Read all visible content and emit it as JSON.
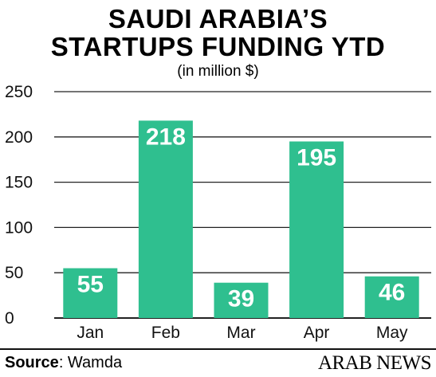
{
  "title_line1": "SAUDI ARABIA’S",
  "title_line2": "STARTUPS FUNDING YTD",
  "subtitle": "(in million $)",
  "source_label": "Source",
  "source_value": ": Wamda",
  "logo_text": "ARAB NEWS",
  "colors": {
    "bar": "#2fbf8f",
    "grid": "#222222",
    "text": "#111111"
  },
  "chart_data": {
    "type": "bar",
    "title": "SAUDI ARABIA’S STARTUPS FUNDING YTD",
    "subtitle": "(in million $)",
    "xlabel": "",
    "ylabel": "",
    "categories": [
      "Jan",
      "Feb",
      "Mar",
      "Apr",
      "May"
    ],
    "values": [
      55,
      218,
      39,
      195,
      46
    ],
    "value_labels": [
      "55",
      "218",
      "39",
      "195",
      "46"
    ],
    "ylim": [
      0,
      250
    ],
    "yticks": [
      "0",
      "50",
      "100",
      "150",
      "200",
      "250"
    ],
    "grid": true
  }
}
